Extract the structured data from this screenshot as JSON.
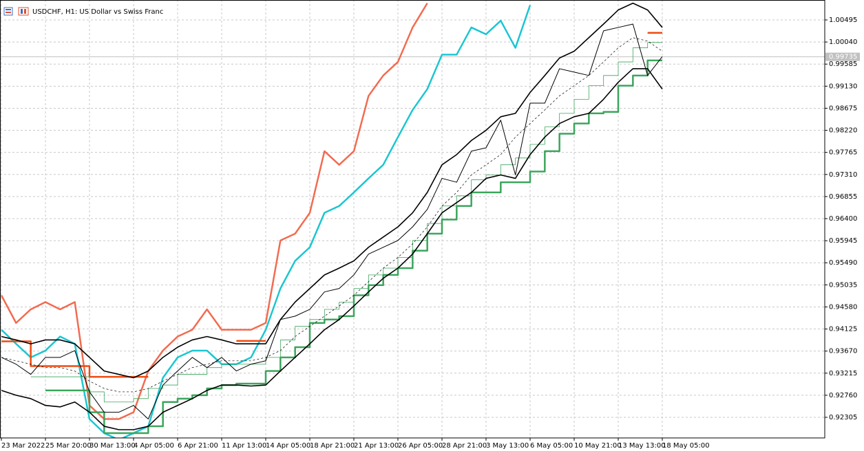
{
  "chart_data": {
    "type": "line",
    "title": "USDCHF, H1:  US Dollar vs Swiss Franc",
    "categories": [
      "23 Mar 2022",
      null,
      null,
      "25 Mar 20:00",
      null,
      null,
      "30 Mar 13:00",
      null,
      null,
      "4 Apr 05:00",
      null,
      null,
      "6 Apr 21:00",
      null,
      null,
      "11 Apr 13:00",
      null,
      null,
      "14 Apr 05:00",
      null,
      null,
      "18 Apr 21:00",
      null,
      null,
      "21 Apr 13:00",
      null,
      null,
      "26 Apr 05:00",
      null,
      null,
      "28 Apr 21:00",
      null,
      null,
      "3 May 13:00",
      null,
      null,
      "6 May 05:00",
      null,
      null,
      "10 May 21:00",
      null,
      null,
      "13 May 13:00",
      null,
      null,
      "18 May 05:00"
    ],
    "ylim": [
      0.9188,
      1.00906
    ],
    "yticks": [
      0.92305,
      {
        "value": 0.9276,
        "label": "0.92760"
      },
      0.93215,
      {
        "value": 0.9367,
        "label": "0.93670"
      },
      0.94125,
      {
        "value": 0.9458,
        "label": "0.94580"
      },
      0.95035,
      {
        "value": 0.9549,
        "label": "0.95490"
      },
      0.95945,
      {
        "value": 0.964,
        "label": "0.96400"
      },
      0.96855,
      {
        "value": 0.9731,
        "label": "0.97310"
      },
      0.97765,
      {
        "value": 0.9822,
        "label": "0.98220"
      },
      0.98675,
      {
        "value": 0.9913,
        "label": "0.99130"
      },
      0.99585,
      {
        "value": 1.0004,
        "label": "1.00040"
      },
      1.00495
    ],
    "grid": true,
    "last_price": 0.99735,
    "series": [
      {
        "color": "#f26b50",
        "values": [
          0.9482,
          0.9425,
          0.9453,
          0.9468,
          0.9453,
          0.9468,
          0.9255,
          0.9227,
          0.9227,
          0.9241,
          0.9326,
          0.9368,
          0.9397,
          0.9411,
          0.9453,
          0.9411,
          0.9411,
          0.9411,
          0.9425,
          0.9595,
          0.9609,
          0.9652,
          0.9779,
          0.9751,
          0.9779,
          0.9893,
          0.9935,
          0.9963,
          1.0034,
          1.0084,
          null,
          null,
          null,
          null,
          null,
          null,
          null,
          null,
          null,
          null,
          null,
          null,
          null,
          null,
          null,
          null
        ]
      },
      {
        "color": "#1ac6d1",
        "values": [
          0.9411,
          0.9382,
          0.9354,
          0.9368,
          0.9397,
          0.9382,
          0.9227,
          0.9198,
          0.9184,
          0.9198,
          0.9212,
          0.9312,
          0.9354,
          0.9368,
          0.9368,
          0.934,
          0.934,
          0.9354,
          0.9411,
          0.9496,
          0.9553,
          0.9581,
          0.9652,
          0.9666,
          0.9694,
          0.9723,
          0.9751,
          0.9808,
          0.9864,
          0.9907,
          0.9978,
          0.9978,
          1.0034,
          1.002,
          1.0048,
          0.9992,
          1.008,
          null,
          null,
          null,
          null,
          null,
          null,
          null,
          null,
          null
        ]
      },
      {
        "color": "#ee4a10",
        "step": true,
        "values": [
          0.9387,
          0.9387,
          0.9336,
          0.9336,
          0.9336,
          0.9336,
          0.9314,
          0.9314,
          0.9314,
          0.9314,
          0.9314,
          null,
          null,
          null,
          null,
          null,
          0.9388,
          0.9388,
          0.9388,
          null,
          null,
          null,
          null,
          null,
          null,
          null,
          null,
          null,
          null,
          null,
          null,
          null,
          null,
          null,
          null,
          null,
          null,
          null,
          null,
          null,
          null,
          null,
          null,
          null,
          1.0023,
          1.0023
        ]
      },
      {
        "color": "#3ba55c",
        "step": true,
        "values": [
          null,
          null,
          null,
          0.9286,
          0.9286,
          0.9286,
          0.9241,
          0.9198,
          0.9198,
          0.9198,
          0.9212,
          0.9262,
          0.9269,
          0.9276,
          0.929,
          0.9297,
          0.93,
          0.93,
          0.9326,
          0.9354,
          0.9375,
          0.9425,
          0.9432,
          0.9439,
          0.9482,
          0.9503,
          0.9524,
          0.9538,
          0.9574,
          0.9609,
          0.9638,
          0.9666,
          0.9694,
          0.9694,
          0.9715,
          0.9715,
          0.9737,
          0.9779,
          0.9815,
          0.9836,
          0.9857,
          0.986,
          0.9914,
          0.9935,
          0.9966,
          0.9966
        ]
      },
      {
        "color": "#3ba55c",
        "step": true,
        "values": [
          null,
          null,
          0.9314,
          0.9314,
          0.9314,
          0.9314,
          0.9283,
          0.9262,
          0.9262,
          0.9269,
          0.929,
          0.9297,
          0.9319,
          0.9319,
          0.9333,
          0.934,
          0.934,
          0.934,
          0.9354,
          0.939,
          0.9418,
          0.9432,
          0.9453,
          0.9468,
          0.9496,
          0.9524,
          0.9538,
          0.956,
          0.9595,
          0.963,
          0.9666,
          0.9687,
          0.972,
          0.973,
          0.9751,
          0.9765,
          0.9793,
          0.9829,
          0.9857,
          0.9886,
          0.9914,
          0.9935,
          0.9963,
          0.9992,
          1.0003,
          1.0003
        ]
      },
      {
        "color": "#000000",
        "dashed": true,
        "values": [
          0.9354,
          0.9347,
          0.934,
          0.9333,
          0.9333,
          0.9326,
          0.9305,
          0.929,
          0.9283,
          0.9283,
          0.929,
          0.9305,
          0.9319,
          0.9333,
          0.934,
          0.9347,
          0.9347,
          0.9347,
          0.9354,
          0.9368,
          0.9397,
          0.9418,
          0.9439,
          0.946,
          0.9482,
          0.951,
          0.9538,
          0.956,
          0.9588,
          0.9623,
          0.9666,
          0.9694,
          0.973,
          0.9751,
          0.9772,
          0.9808,
          0.9836,
          0.9864,
          0.9893,
          0.9914,
          0.9935,
          0.9963,
          0.9992,
          1.0013,
          1.0006,
          0.9985
        ]
      },
      {
        "color": "#000000",
        "values": [
          0.9397,
          0.939,
          0.9382,
          0.939,
          0.939,
          0.9382,
          0.9354,
          0.9326,
          0.9319,
          0.9312,
          0.9326,
          0.9354,
          0.9375,
          0.939,
          0.9397,
          0.939,
          0.9382,
          0.9382,
          0.9382,
          0.9432,
          0.9468,
          0.9496,
          0.9524,
          0.9538,
          0.9553,
          0.9581,
          0.9602,
          0.9623,
          0.9652,
          0.9694,
          0.9751,
          0.9772,
          0.9801,
          0.9822,
          0.985,
          0.9857,
          0.99,
          0.9935,
          0.9971,
          0.9985,
          1.0013,
          1.0041,
          1.007,
          1.0084,
          1.007,
          1.0034
        ]
      },
      {
        "color": "#000000",
        "values": [
          0.9286,
          0.9276,
          0.9269,
          0.9255,
          0.9252,
          0.9262,
          0.9241,
          0.9212,
          0.9205,
          0.9205,
          0.9212,
          0.9241,
          0.9255,
          0.9269,
          0.9286,
          0.9297,
          0.9297,
          0.9295,
          0.9297,
          0.9326,
          0.9354,
          0.9382,
          0.9411,
          0.9432,
          0.946,
          0.9489,
          0.9517,
          0.9538,
          0.9567,
          0.9609,
          0.9652,
          0.9673,
          0.9694,
          0.9723,
          0.973,
          0.9723,
          0.9772,
          0.9808,
          0.9836,
          0.985,
          0.9857,
          0.9886,
          0.9921,
          0.9949,
          0.9949,
          0.9907
        ]
      },
      {
        "color": "#000000",
        "values": [
          0.9354,
          0.934,
          0.9319,
          0.9354,
          0.9354,
          0.9368,
          0.9283,
          0.9241,
          0.9241,
          0.9255,
          0.9227,
          0.9297,
          0.9326,
          0.9354,
          0.9333,
          0.9354,
          0.9326,
          0.934,
          0.9347,
          0.9432,
          0.9439,
          0.9453,
          0.9489,
          0.9496,
          0.9524,
          0.9567,
          0.9581,
          0.9595,
          0.9623,
          0.9659,
          0.9723,
          0.9715,
          0.9779,
          0.9786,
          0.9843,
          0.973,
          0.9878,
          0.9878,
          0.9949,
          0.9942,
          0.9935,
          1.0027,
          1.0034,
          1.0041,
          0.9935,
          0.9974
        ]
      }
    ]
  }
}
